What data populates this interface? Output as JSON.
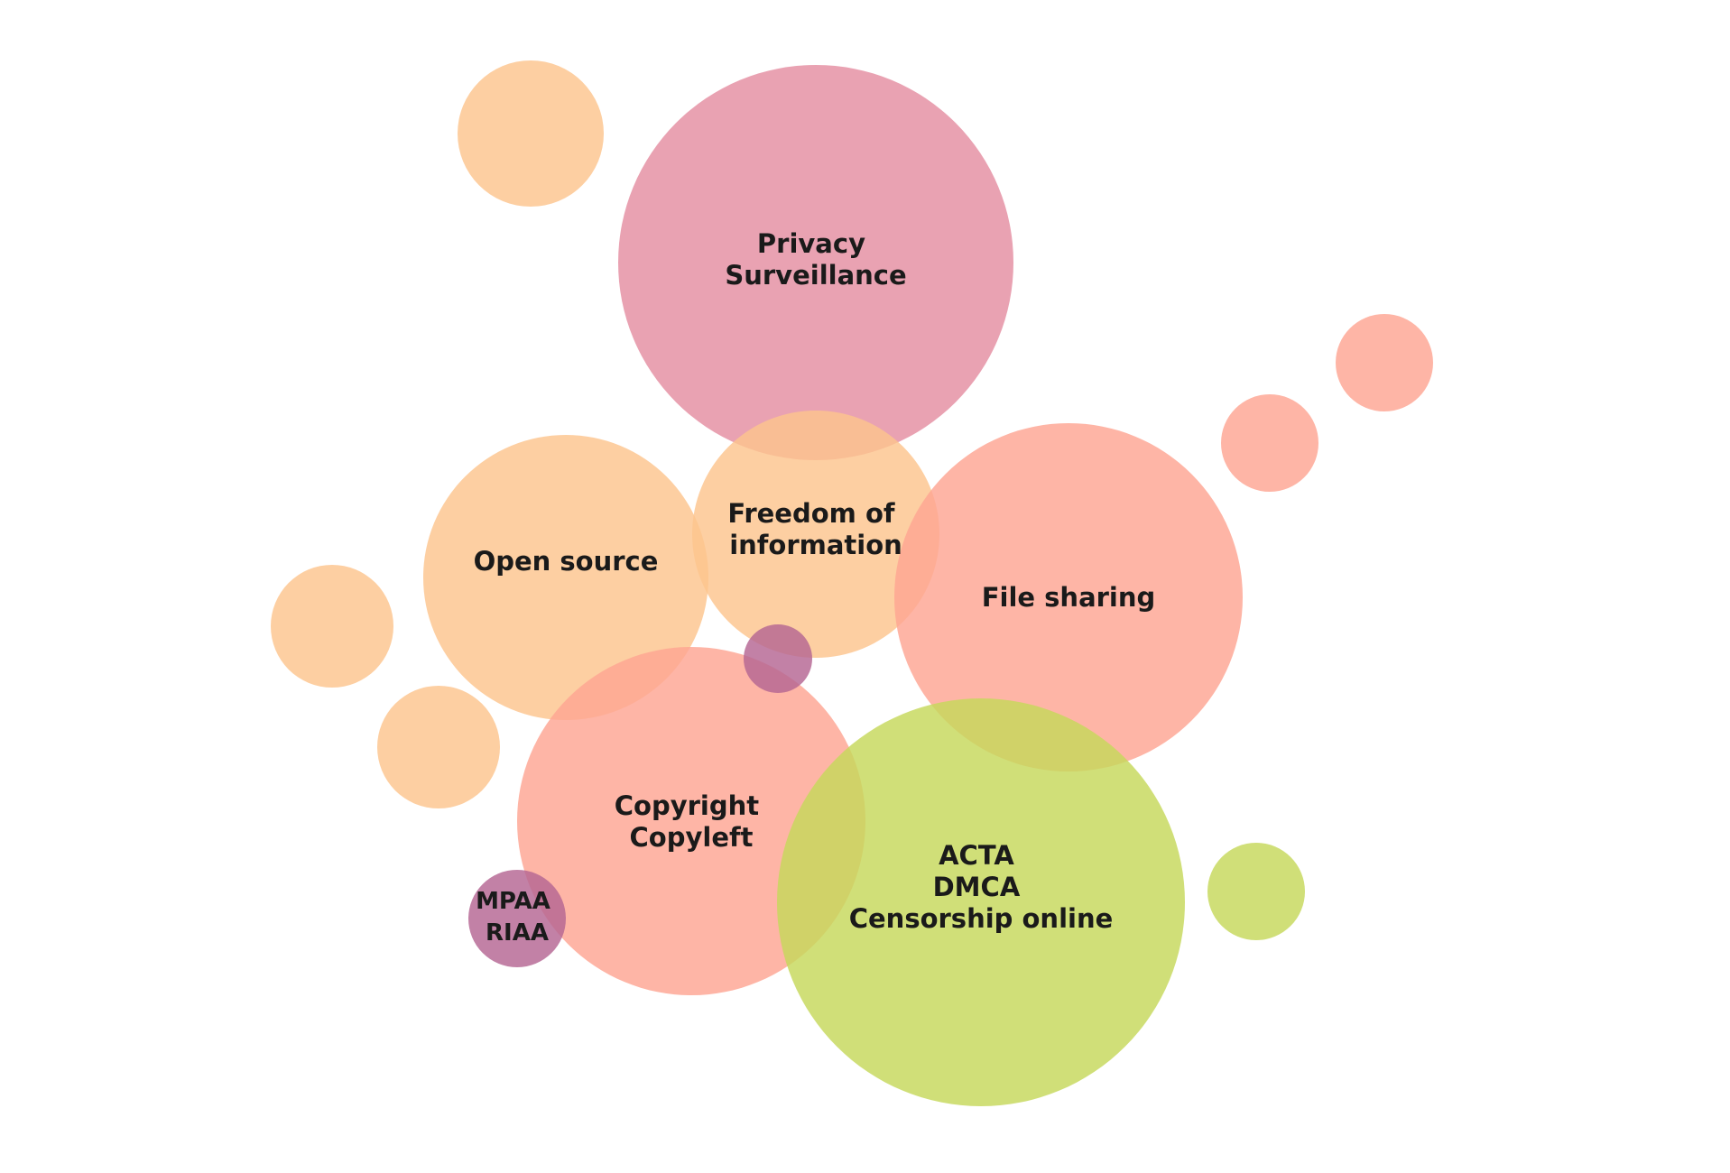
{
  "colors": {
    "privacy": "#e48da1",
    "freedom": "#fdc48e",
    "open_source": "#fdc48e",
    "file_sharing": "#fea592",
    "copyright": "#fea592",
    "acta": "#c6d85a",
    "mpaa": "#b56593",
    "decor_orange": "#fdc48e",
    "decor_salmon": "#fea592",
    "decor_green": "#c6d85a",
    "decor_purple": "#b56593"
  },
  "bubbles": [
    {
      "id": "privacy",
      "lines": [
        "Privacy",
        "Surveillance"
      ]
    },
    {
      "id": "open_source",
      "lines": [
        "Open source"
      ]
    },
    {
      "id": "freedom",
      "lines": [
        "Freedom of",
        "information"
      ]
    },
    {
      "id": "file_sharing",
      "lines": [
        "File sharing"
      ]
    },
    {
      "id": "copyright",
      "lines": [
        "Copyright",
        "Copyleft"
      ]
    },
    {
      "id": "acta",
      "lines": [
        "ACTA",
        "DMCA",
        "Censorship online"
      ]
    },
    {
      "id": "mpaa",
      "lines": [
        "MPAA",
        "RIAA"
      ]
    }
  ]
}
